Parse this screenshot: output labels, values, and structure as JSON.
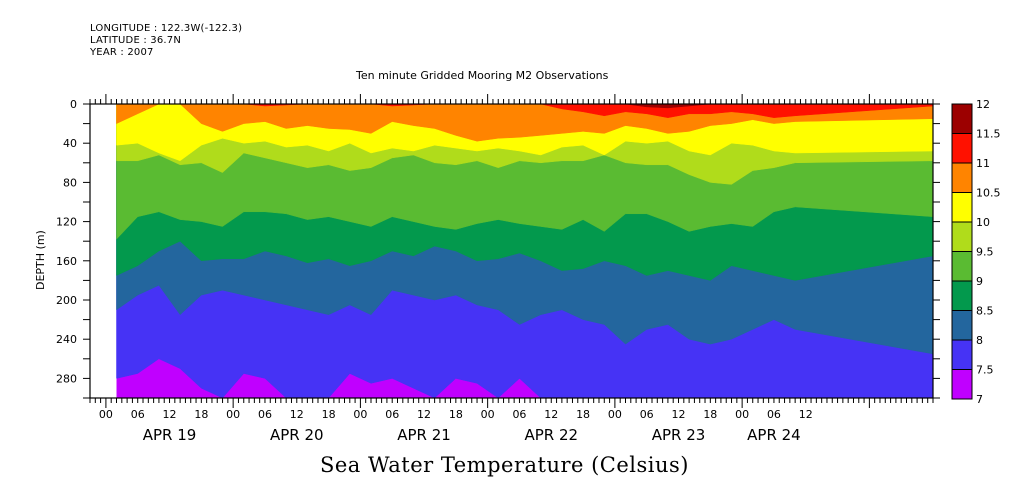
{
  "header": {
    "longitude": "LONGITUDE : 122.3W(-122.3)",
    "latitude": "LATITUDE : 36.7N",
    "year": "YEAR : 2007"
  },
  "chart_data": {
    "type": "heatmap",
    "subtype": "filled-contour (time-depth section)",
    "title": "Ten minute Gridded Mooring M2 Observations",
    "xlabel": "Sea Water Temperature (Celsius)",
    "ylabel": "DEPTH (m)",
    "y_axis": {
      "range": [
        0,
        300
      ],
      "inverted": true,
      "tick_labels": [
        "0",
        "40",
        "80",
        "120",
        "160",
        "200",
        "240",
        "280"
      ],
      "tick_values": [
        0,
        40,
        80,
        120,
        160,
        200,
        240,
        280
      ]
    },
    "x_axis": {
      "range_hours": [
        -3,
        156
      ],
      "data_start_hours": 2,
      "hour_tick_labels": [
        "00",
        "06",
        "12",
        "18",
        "00",
        "06",
        "12",
        "18",
        "00",
        "06",
        "12",
        "18",
        "00",
        "06",
        "12",
        "18",
        "00",
        "06",
        "12",
        "18",
        "00",
        "06",
        "12"
      ],
      "hour_tick_values": [
        0,
        6,
        12,
        18,
        24,
        30,
        36,
        42,
        48,
        54,
        60,
        66,
        72,
        78,
        84,
        90,
        96,
        102,
        108,
        114,
        120,
        126,
        132
      ],
      "day_labels": [
        "APR 19",
        "APR 20",
        "APR 21",
        "APR 22",
        "APR 23",
        "APR 24"
      ],
      "day_label_centers_hours": [
        12,
        36,
        60,
        84,
        108,
        126
      ]
    },
    "colorbar": {
      "levels": [
        7,
        7.5,
        8,
        8.5,
        9,
        9.5,
        10,
        10.5,
        11,
        11.5,
        12
      ],
      "labels": [
        "7",
        "7.5",
        "8",
        "8.5",
        "9",
        "9.5",
        "10",
        "10.5",
        "11",
        "11.5",
        "12"
      ],
      "colors": [
        "#c000ff",
        "#4633f5",
        "#23669e",
        "#03994d",
        "#5abb32",
        "#b0dc1b",
        "#ffff00",
        "#ff8400",
        "#ff1100",
        "#9c0000"
      ]
    },
    "contours_note": "Depth (m) of each isotherm boundary sampled every 6 hours from hour 2 (Apr 19 02:00) to hour 132 (Apr 24 12:00); 'top' band is 11.5+ near surface.",
    "sample_hours": [
      2,
      6,
      10,
      14,
      18,
      22,
      26,
      30,
      34,
      38,
      42,
      46,
      50,
      54,
      58,
      62,
      66,
      70,
      74,
      78,
      82,
      86,
      90,
      94,
      98,
      102,
      106,
      110,
      114,
      118,
      122,
      126,
      130,
      132
    ],
    "isotherms": [
      {
        "level": 11.5,
        "depth": [
          0,
          0,
          0,
          0,
          0,
          0,
          0,
          0,
          0,
          0,
          0,
          0,
          0,
          0,
          0,
          0,
          0,
          0,
          0,
          0,
          0,
          0,
          0,
          0,
          0,
          3,
          4,
          2,
          0,
          0,
          0,
          0,
          0,
          0
        ]
      },
      {
        "level": 11,
        "depth": [
          0,
          0,
          0,
          0,
          0,
          0,
          0,
          2,
          1,
          0,
          0,
          0,
          0,
          2,
          1,
          0,
          0,
          0,
          0,
          0,
          0,
          5,
          8,
          12,
          8,
          10,
          14,
          10,
          10,
          8,
          10,
          14,
          12,
          2
        ]
      },
      {
        "level": 10.5,
        "depth": [
          20,
          10,
          0,
          0,
          20,
          28,
          20,
          18,
          25,
          22,
          25,
          26,
          30,
          18,
          22,
          25,
          32,
          38,
          35,
          34,
          32,
          30,
          28,
          30,
          22,
          25,
          30,
          28,
          22,
          20,
          16,
          20,
          18,
          15
        ]
      },
      {
        "level": 10,
        "depth": [
          42,
          40,
          50,
          58,
          42,
          35,
          40,
          38,
          44,
          42,
          48,
          40,
          50,
          45,
          48,
          42,
          45,
          48,
          45,
          48,
          52,
          44,
          42,
          52,
          38,
          40,
          38,
          48,
          52,
          40,
          42,
          48,
          50,
          48
        ]
      },
      {
        "level": 9.5,
        "depth": [
          58,
          58,
          52,
          62,
          60,
          70,
          50,
          55,
          60,
          65,
          62,
          68,
          65,
          55,
          52,
          60,
          62,
          58,
          65,
          58,
          60,
          58,
          58,
          52,
          60,
          62,
          62,
          72,
          80,
          82,
          68,
          65,
          60,
          58
        ]
      },
      {
        "level": 9,
        "depth": [
          138,
          115,
          110,
          118,
          120,
          125,
          110,
          110,
          112,
          118,
          115,
          120,
          125,
          115,
          120,
          125,
          128,
          122,
          118,
          122,
          125,
          128,
          118,
          130,
          112,
          112,
          120,
          130,
          125,
          122,
          125,
          110,
          105,
          115
        ]
      },
      {
        "level": 8.5,
        "depth": [
          175,
          165,
          150,
          140,
          160,
          158,
          158,
          150,
          155,
          162,
          158,
          165,
          160,
          150,
          155,
          145,
          150,
          160,
          158,
          152,
          160,
          170,
          168,
          160,
          165,
          175,
          170,
          175,
          180,
          165,
          170,
          175,
          180,
          155
        ]
      },
      {
        "level": 8,
        "depth": [
          210,
          195,
          185,
          215,
          195,
          190,
          195,
          200,
          205,
          210,
          215,
          205,
          215,
          190,
          195,
          200,
          195,
          205,
          210,
          225,
          215,
          210,
          220,
          225,
          245,
          230,
          225,
          240,
          245,
          240,
          230,
          220,
          230,
          255
        ]
      },
      {
        "level": 7.5,
        "depth": [
          280,
          275,
          260,
          270,
          290,
          300,
          275,
          280,
          300,
          300,
          300,
          275,
          285,
          280,
          290,
          300,
          280,
          285,
          300,
          280,
          300,
          300,
          300,
          300,
          300,
          300,
          300,
          300,
          300,
          300,
          300,
          300,
          300,
          300
        ]
      }
    ]
  }
}
